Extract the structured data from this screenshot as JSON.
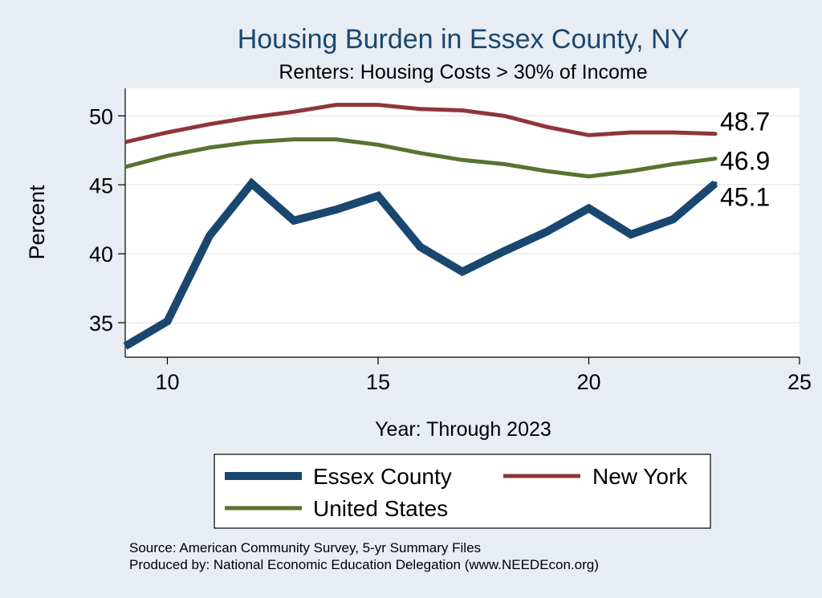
{
  "chart_data": {
    "type": "line",
    "title": "Housing Burden in Essex County, NY",
    "subtitle": "Renters: Housing Costs > 30% of Income",
    "xlabel": "Year: Through 2023",
    "ylabel": "Percent",
    "xlim": [
      9,
      25
    ],
    "ylim": [
      32.5,
      52
    ],
    "xticks": [
      10,
      15,
      20,
      25
    ],
    "yticks": [
      35,
      40,
      45,
      50
    ],
    "grid": true,
    "legend_position": "bottom",
    "x": [
      9,
      10,
      11,
      12,
      13,
      14,
      15,
      16,
      17,
      18,
      19,
      20,
      21,
      22,
      23
    ],
    "series": [
      {
        "name": "Essex County",
        "color": "#1a476f",
        "values": [
          33.3,
          35.1,
          41.3,
          45.1,
          42.4,
          43.2,
          44.2,
          40.5,
          38.7,
          40.2,
          41.6,
          43.3,
          41.4,
          42.5,
          45.1
        ],
        "end_label": "45.1"
      },
      {
        "name": "New York",
        "color": "#90353b",
        "values": [
          48.1,
          48.8,
          49.4,
          49.9,
          50.3,
          50.8,
          50.8,
          50.5,
          50.4,
          50.0,
          49.2,
          48.6,
          48.8,
          48.8,
          48.7
        ],
        "end_label": "48.7"
      },
      {
        "name": "United States",
        "color": "#55752f",
        "values": [
          46.3,
          47.1,
          47.7,
          48.1,
          48.3,
          48.3,
          47.9,
          47.3,
          46.8,
          46.5,
          46.0,
          45.6,
          46.0,
          46.5,
          46.9
        ],
        "end_label": "46.9"
      }
    ],
    "notes": [
      "Source: American Community Survey, 5-yr Summary Files",
      "Produced by: National Economic Education Delegation (www.NEEDEcon.org)"
    ]
  }
}
